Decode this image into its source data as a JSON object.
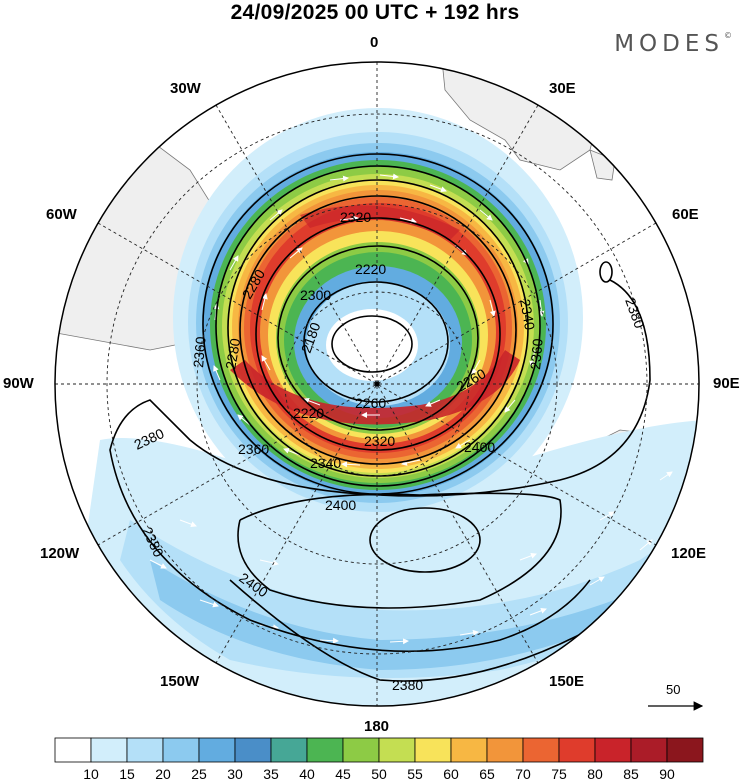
{
  "title": "24/09/2025  00 UTC  + 192 hrs",
  "brand": "MODES",
  "brand_mark": "©",
  "longitude_labels": [
    "0",
    "30E",
    "60E",
    "90E",
    "120E",
    "150E",
    "180",
    "150W",
    "120W",
    "90W",
    "60W",
    "30W"
  ],
  "vector_scale": {
    "label": "50"
  },
  "contour_labels": [
    "2180",
    "2220",
    "2220",
    "2260",
    "2260",
    "2280",
    "2280",
    "2300",
    "2320",
    "2320",
    "2340",
    "2340",
    "2360",
    "2360",
    "2360",
    "2380",
    "2380",
    "2380",
    "2380",
    "2400",
    "2400",
    "2400"
  ],
  "colorbar": {
    "labels": [
      "10",
      "15",
      "20",
      "25",
      "30",
      "35",
      "40",
      "45",
      "50",
      "55",
      "60",
      "65",
      "70",
      "75",
      "80",
      "85",
      "90"
    ],
    "colors": [
      "#ffffff",
      "#d2eefb",
      "#b4e0f8",
      "#8ccaef",
      "#62ace0",
      "#4a8ec8",
      "#46a796",
      "#4cb552",
      "#8dcb45",
      "#c4de52",
      "#f8e35a",
      "#f7b743",
      "#f2953a",
      "#eb6532",
      "#df3c2c",
      "#c9232a",
      "#ab1c28",
      "#8b161d"
    ]
  },
  "map": {
    "land_color": "#f0f0f0",
    "grid_color": "#222222"
  }
}
